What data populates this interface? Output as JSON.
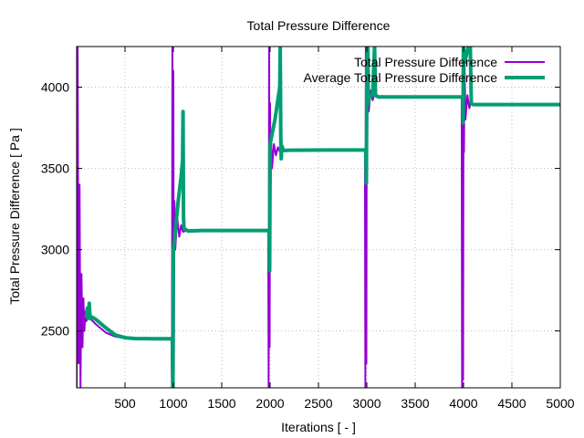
{
  "chart_data": {
    "type": "line",
    "title": "Total Pressure Difference",
    "xlabel": "Iterations [ - ]",
    "ylabel": "Total Pressure Difference [ Pa ]",
    "xlim": [
      0,
      5000
    ],
    "ylim": [
      2150,
      4250
    ],
    "xticks": [
      500,
      1000,
      1500,
      2000,
      2500,
      3000,
      3500,
      4000,
      4500,
      5000
    ],
    "yticks": [
      2500,
      3000,
      3500,
      4000
    ],
    "grid": true,
    "legend_position": "top-right",
    "series": [
      {
        "name": "Total Pressure Difference",
        "color": "#9400d3",
        "points": [
          [
            0,
            2150
          ],
          [
            10,
            4250
          ],
          [
            20,
            2300
          ],
          [
            30,
            3400
          ],
          [
            40,
            2150
          ],
          [
            50,
            2850
          ],
          [
            60,
            2400
          ],
          [
            70,
            2700
          ],
          [
            80,
            2500
          ],
          [
            90,
            2620
          ],
          [
            100,
            2560
          ],
          [
            120,
            2590
          ],
          [
            150,
            2570
          ],
          [
            200,
            2540
          ],
          [
            300,
            2490
          ],
          [
            400,
            2465
          ],
          [
            500,
            2455
          ],
          [
            600,
            2452
          ],
          [
            800,
            2452
          ],
          [
            980,
            2452
          ],
          [
            985,
            2150
          ],
          [
            990,
            4250
          ],
          [
            995,
            2150
          ],
          [
            1000,
            4100
          ],
          [
            1005,
            2150
          ],
          [
            1010,
            3300
          ],
          [
            1020,
            3000
          ],
          [
            1040,
            3200
          ],
          [
            1060,
            3080
          ],
          [
            1080,
            3150
          ],
          [
            1100,
            3110
          ],
          [
            1150,
            3120
          ],
          [
            1300,
            3118
          ],
          [
            1600,
            3118
          ],
          [
            1980,
            3118
          ],
          [
            1985,
            2150
          ],
          [
            1990,
            4250
          ],
          [
            1995,
            2400
          ],
          [
            2000,
            3900
          ],
          [
            2005,
            3300
          ],
          [
            2010,
            3700
          ],
          [
            2020,
            3500
          ],
          [
            2040,
            3650
          ],
          [
            2060,
            3580
          ],
          [
            2080,
            3630
          ],
          [
            2100,
            3605
          ],
          [
            2150,
            3612
          ],
          [
            2300,
            3613
          ],
          [
            2600,
            3613
          ],
          [
            2980,
            3613
          ],
          [
            2985,
            2150
          ],
          [
            2990,
            4250
          ],
          [
            2995,
            2300
          ],
          [
            3000,
            4250
          ],
          [
            3005,
            3700
          ],
          [
            3010,
            4100
          ],
          [
            3020,
            3850
          ],
          [
            3040,
            3980
          ],
          [
            3060,
            3920
          ],
          [
            3080,
            3960
          ],
          [
            3100,
            3940
          ],
          [
            3150,
            3945
          ],
          [
            3300,
            3940
          ],
          [
            3600,
            3940
          ],
          [
            3980,
            3940
          ],
          [
            3985,
            2150
          ],
          [
            3990,
            4250
          ],
          [
            3995,
            2200
          ],
          [
            4000,
            4250
          ],
          [
            4005,
            3600
          ],
          [
            4010,
            4150
          ],
          [
            4020,
            3800
          ],
          [
            4040,
            3950
          ],
          [
            4060,
            3870
          ],
          [
            4080,
            3920
          ],
          [
            4100,
            3890
          ],
          [
            4150,
            3895
          ],
          [
            4300,
            3893
          ],
          [
            4600,
            3893
          ],
          [
            5000,
            3893
          ]
        ]
      },
      {
        "name": "Average Total Pressure Difference",
        "color": "#009e73",
        "points": [
          [
            100,
            2580
          ],
          [
            110,
            2640
          ],
          [
            120,
            2580
          ],
          [
            130,
            2670
          ],
          [
            140,
            2575
          ],
          [
            160,
            2585
          ],
          [
            200,
            2570
          ],
          [
            300,
            2520
          ],
          [
            400,
            2475
          ],
          [
            500,
            2458
          ],
          [
            600,
            2453
          ],
          [
            800,
            2452
          ],
          [
            990,
            2452
          ],
          [
            995,
            2150
          ],
          [
            1000,
            3000
          ],
          [
            1010,
            3050
          ],
          [
            1050,
            3300
          ],
          [
            1080,
            3450
          ],
          [
            1095,
            3550
          ],
          [
            1100,
            3850
          ],
          [
            1105,
            3200
          ],
          [
            1110,
            3130
          ],
          [
            1150,
            3115
          ],
          [
            1300,
            3118
          ],
          [
            1600,
            3118
          ],
          [
            1990,
            3118
          ],
          [
            1995,
            2870
          ],
          [
            2000,
            3650
          ],
          [
            2050,
            3800
          ],
          [
            2100,
            4000
          ],
          [
            2105,
            4250
          ],
          [
            2110,
            3700
          ],
          [
            2115,
            3560
          ],
          [
            2120,
            3640
          ],
          [
            2140,
            3610
          ],
          [
            2200,
            3612
          ],
          [
            2600,
            3613
          ],
          [
            2990,
            3613
          ],
          [
            2995,
            3410
          ],
          [
            3000,
            4100
          ],
          [
            3010,
            4250
          ],
          [
            3015,
            3900
          ],
          [
            3030,
            3950
          ],
          [
            3060,
            3950
          ],
          [
            3080,
            4250
          ],
          [
            3090,
            3950
          ],
          [
            3120,
            3940
          ],
          [
            3400,
            3940
          ],
          [
            3990,
            3940
          ],
          [
            3995,
            3780
          ],
          [
            4000,
            4250
          ],
          [
            4010,
            4150
          ],
          [
            4050,
            4250
          ],
          [
            4070,
            4250
          ],
          [
            4080,
            3900
          ],
          [
            4100,
            3893
          ],
          [
            4300,
            3893
          ],
          [
            4700,
            3893
          ],
          [
            5000,
            3893
          ]
        ]
      }
    ]
  }
}
